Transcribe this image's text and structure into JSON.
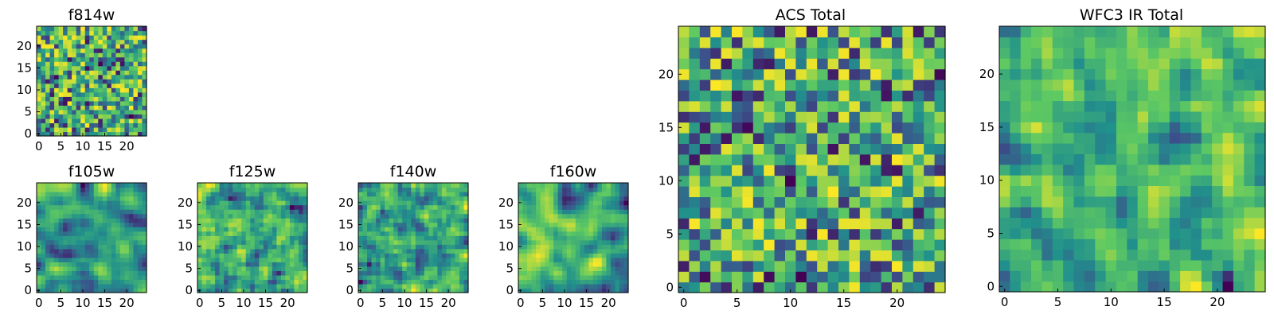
{
  "chart_data": [
    {
      "type": "heatmap",
      "title": "f814w",
      "grid_size": 25,
      "seed": 11,
      "smooth": 0,
      "xticks": [
        "0",
        "5",
        "10",
        "15",
        "20"
      ],
      "yticks": [
        "0",
        "5",
        "10",
        "15",
        "20"
      ],
      "xlim": [
        0,
        25
      ],
      "ylim": [
        0,
        25
      ]
    },
    {
      "type": "heatmap",
      "title": "f105w",
      "grid_size": 25,
      "seed": 23,
      "smooth": 2,
      "xticks": [
        "0",
        "5",
        "10",
        "15",
        "20"
      ],
      "yticks": [
        "0",
        "5",
        "10",
        "15",
        "20"
      ],
      "xlim": [
        0,
        25
      ],
      "ylim": [
        0,
        25
      ]
    },
    {
      "type": "heatmap",
      "title": "f125w",
      "grid_size": 25,
      "seed": 37,
      "smooth": 1,
      "xticks": [
        "0",
        "5",
        "10",
        "15",
        "20"
      ],
      "yticks": [
        "0",
        "5",
        "10",
        "15",
        "20"
      ],
      "xlim": [
        0,
        25
      ],
      "ylim": [
        0,
        25
      ]
    },
    {
      "type": "heatmap",
      "title": "f140w",
      "grid_size": 25,
      "seed": 41,
      "smooth": 1,
      "xticks": [
        "0",
        "5",
        "10",
        "15",
        "20"
      ],
      "yticks": [
        "0",
        "5",
        "10",
        "15",
        "20"
      ],
      "xlim": [
        0,
        25
      ],
      "ylim": [
        0,
        25
      ]
    },
    {
      "type": "heatmap",
      "title": "f160w",
      "grid_size": 25,
      "seed": 53,
      "smooth": 2,
      "xticks": [
        "0",
        "5",
        "10",
        "15",
        "20"
      ],
      "yticks": [
        "0",
        "5",
        "10",
        "15",
        "20"
      ],
      "xlim": [
        0,
        25
      ],
      "ylim": [
        0,
        25
      ]
    },
    {
      "type": "heatmap",
      "title": "ACS Total",
      "grid_size": 25,
      "seed": 67,
      "smooth": 0,
      "xticks": [
        "0",
        "5",
        "10",
        "15",
        "20"
      ],
      "yticks": [
        "0",
        "5",
        "10",
        "15",
        "20"
      ],
      "xlim": [
        0,
        25
      ],
      "ylim": [
        0,
        25
      ]
    },
    {
      "type": "heatmap",
      "title": "WFC3 IR Total",
      "grid_size": 25,
      "seed": 79,
      "smooth": 1,
      "xticks": [
        "0",
        "5",
        "10",
        "15",
        "20"
      ],
      "yticks": [
        "0",
        "5",
        "10",
        "15",
        "20"
      ],
      "xlim": [
        0,
        25
      ],
      "ylim": [
        0,
        25
      ]
    }
  ],
  "colormap": {
    "name": "viridis",
    "colors": [
      "#440154",
      "#3b528b",
      "#21918c",
      "#5ec962",
      "#fde725"
    ]
  }
}
